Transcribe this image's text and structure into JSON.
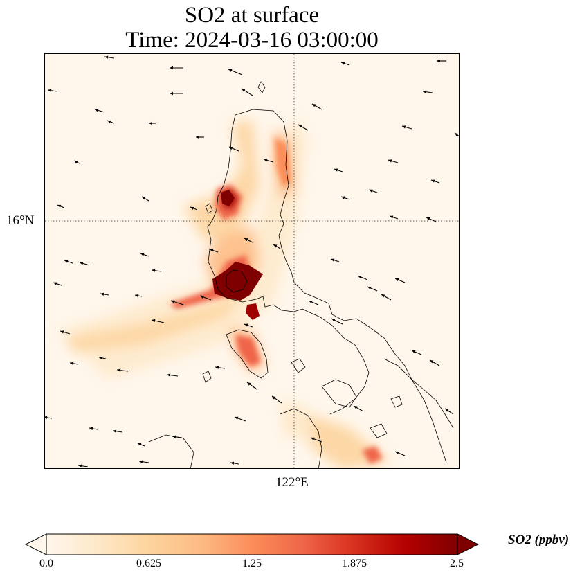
{
  "title": {
    "line1": "SO2 at surface",
    "line2": "Time: 2024-03-16 03:00:00"
  },
  "map": {
    "gridlines": {
      "latitude_label": "16°N",
      "longitude_label": "122°E",
      "style": "dotted"
    },
    "field": {
      "variable": "SO2",
      "level": "surface",
      "units": "ppbv",
      "colormap": "OrRd",
      "hotspots": [
        {
          "area": "central Luzon plume",
          "level": 2.5
        },
        {
          "area": "northern Luzon west coast",
          "level": 1.8
        },
        {
          "area": "northern Luzon east ridge",
          "level": 1.2
        },
        {
          "area": "Mindoro",
          "level": 1.2
        },
        {
          "area": "western sea plume",
          "level": 1.4
        },
        {
          "area": "southeastern islands",
          "level": 1.0
        }
      ]
    },
    "wind_vectors": "black arrows, predominantly easterly (toward west-southwest)"
  },
  "colorbar": {
    "label": "SO2 (ppbv)",
    "ticks": [
      "0.0",
      "0.625",
      "1.25",
      "1.875",
      "2.5"
    ],
    "range": [
      0.0,
      2.5
    ],
    "extend": "both",
    "colors": [
      "#fff7ec",
      "#fee8c8",
      "#fdd49e",
      "#fdbb84",
      "#fc8d59",
      "#ef6548",
      "#d7301f",
      "#b30000",
      "#7f0000"
    ]
  }
}
